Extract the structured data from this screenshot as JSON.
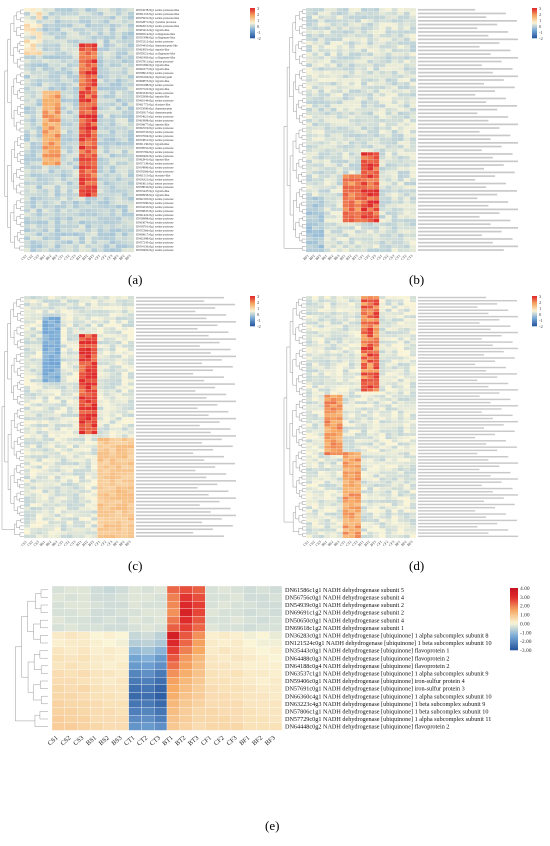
{
  "figure": {
    "panel_labels": [
      "(a)",
      "(b)",
      "(c)",
      "(d)",
      "(e)"
    ]
  },
  "chart_data": [
    {
      "type": "heatmap",
      "panel": "a",
      "rows": 62,
      "columns": [
        "CS1",
        "CS2",
        "CS3",
        "BS1",
        "BS2",
        "BS3",
        "CT1",
        "CT2",
        "CT3",
        "BT1",
        "BT2",
        "BT3",
        "CF1",
        "CF2",
        "CF3",
        "BF1",
        "BF2",
        "BF3"
      ],
      "colorbar_ticks": [
        "3",
        "2",
        "1",
        "0",
        "-1",
        "-2"
      ],
      "row_labels": [
        "DN54578c0g1 serine protease-like",
        "DN61253c0g1 serine protease-like",
        "DN55931c0g1 serine protease-like",
        "DN52871c0g1 cysteine protease",
        "DN62013c0g1 serine protease-like",
        "DN63412c0g1 trypsin-like",
        "DN60214c0g1 collagenase-like",
        "DN51998c0g1 collagenase-like",
        "DN55212c0g1 serine protease",
        "DN54410c0g1 chymotrypsin-like",
        "DN63001c0g1 trypsin-like",
        "DN59521c0g1 collagenase-like",
        "DN61983c0g1 collagenase-like",
        "DN57811c0g1 serine protease",
        "DN53360c0g1 trypsin-like",
        "DN62277c0g1 trypsin-like",
        "DN58913c0g1 serine protease",
        "DN56104c0g1 chymotrypsin",
        "DN60873c0g1 trypsin-like",
        "DN59188c0g1 serine protease",
        "DN57522c0g1 trypsin-like",
        "DN63345c0g1 serine protease",
        "DN52906c0g1 trypsin-like",
        "DN60144c0g1 serine protease",
        "DN61772c0g1 elastase-like",
        "DN55090c0g1 chymotrypsin",
        "DN58317c0g1 chymotrypsin",
        "DN54621c0g1 serine protease",
        "DN63908c0g1 serine protease",
        "DN56677c0g1 trypsin-like",
        "DN62519c0g1 serine protease",
        "DN59733c0g1 serine protease",
        "DN57004c0g1 serine protease",
        "DN53812c0g1 serine protease",
        "DN61136c0g1 trypsin-like",
        "DN58552c0g1 serine protease",
        "DN55784c0g1 serine protease",
        "DN60402c0g1 serine protease",
        "DN62841c0g1 trypsin-like",
        "DN57139c0g1 serine protease",
        "DN54990c0g1 serine protease",
        "DN59266c0g1 serine protease",
        "DN61515c0g1 elastase-like",
        "DN56321c0g1 serine protease",
        "DN63611c0g1 serine protease",
        "DN58034c0g1 serine protease",
        "DN55447c0g1 trypsin-like",
        "DN60958c0g1 trypsin-like",
        "DN62105c0g1 serine protease",
        "DN57690c0g1 serine protease",
        "DN54233c0g1 serine protease",
        "DN59847c0g1 serine protease",
        "DN61422c0g1 serine protease",
        "DN56968c0g1 serine protease",
        "DN63074c0g1 serine protease",
        "DN58701c0g1 serine protease",
        "DN55366c0g1 serine protease",
        "DN60617c0g1 serine protease",
        "DN62388c0g1 serine protease",
        "DN57245c0g1 serine protease",
        "DN54156c0g1 serine protease",
        "DN59402c0g1 serine protease"
      ]
    },
    {
      "type": "heatmap",
      "panel": "b",
      "rows": 66,
      "columns": [
        "BF1",
        "BF2",
        "BF3",
        "BS1",
        "BS2",
        "BS3",
        "BT1",
        "BT2",
        "BT3",
        "CF1",
        "CF2",
        "CF3",
        "CS1",
        "CS2",
        "CS3",
        "CT1",
        "CT2",
        "CT3"
      ],
      "colorbar_ticks": [
        "3",
        "2",
        "1",
        "0",
        "-1",
        "-2"
      ],
      "row_labels": []
    },
    {
      "type": "heatmap",
      "panel": "c",
      "rows": 70,
      "columns": [
        "CS1",
        "CS2",
        "CS3",
        "BS1",
        "BS2",
        "BS3",
        "CT1",
        "CT2",
        "CT3",
        "BT1",
        "BT2",
        "BT3",
        "CF1",
        "CF2",
        "CF3",
        "BF1",
        "BF2",
        "BF3"
      ],
      "colorbar_ticks": [
        "3",
        "2",
        "1",
        "0",
        "-1",
        "-2"
      ],
      "row_labels": []
    },
    {
      "type": "heatmap",
      "panel": "d",
      "rows": 76,
      "columns": [
        "CS1",
        "CS2",
        "CS3",
        "BS1",
        "BS2",
        "BS3",
        "CT1",
        "CT2",
        "CT3",
        "BT1",
        "BT2",
        "BT3",
        "CF1",
        "CF2",
        "CF3",
        "BF1",
        "BF2",
        "BF3"
      ],
      "colorbar_ticks": [
        "3",
        "2",
        "1",
        "0",
        "-1",
        "-2"
      ],
      "row_labels": []
    },
    {
      "type": "heatmap",
      "panel": "e",
      "columns": [
        "CS1",
        "CS2",
        "CS3",
        "BS1",
        "BS2",
        "BS3",
        "CT1",
        "CT2",
        "CT3",
        "BT1",
        "BT2",
        "BT3",
        "CF1",
        "CF2",
        "CF3",
        "BF1",
        "BF2",
        "BF3"
      ],
      "colorbar_ticks": [
        "4.00",
        "3.00",
        "2.00",
        "1.00",
        "0.00",
        "-1.00",
        "-2.00",
        "-3.00"
      ],
      "row_labels": [
        "DN61586c1g1 NADH dehydrogenase subunit 5",
        "DN56756c0g1 NADH dehydrogenase subunit 4",
        "DN54939c0g1 NADH dehydrogenase subunit 2",
        "DN69691c1g2 NADH dehydrogenase subunit 2",
        "DN50650c0g1 NADH dehydrogenase subunit 4",
        "DN69618c1g2 NADH dehydrogenase subunit 1",
        "DN36283c0g1 NADH dehydrogenase [ubiquinone] 1 alpha subcomplex subunit 8",
        "DN121524c0g1 NADH dehydrogenase [ubiquinone] 1 beta subcomplex subunit 10",
        "DN35443c0g1 NADH dehydrogenase [ubiquinone] flavoprotein 1",
        "DN64488c0g3 NADH dehydrogenase [ubiquinone] flavoprotein 2",
        "DN64188c0g4 NADH dehydrogenase [ubiquinone] flavoprotein 2",
        "DN63537c1g1 NADH dehydrogenase [ubiquinone] 1 alpha subcomplex subunit 9",
        "DN59406c0g1 NADH dehydrogenase [ubiquinone] iron-sulfur protein 4",
        "DN57691c0g1 NADH dehydrogenase [ubiquinone] iron-sulfur protein 3",
        "DN66360c4g1 NADH dehydrogenase [ubiquinone] 1 alpha subcomplex subunit 10",
        "DN63223c4g3 NADH dehydrogenase [ubiquinone] 1 beta subcomplex subunit 9",
        "DN57806c1g1 NADH dehydrogenase [ubiquinone] 1 beta subcomplex subunit 10",
        "DN57729c0g1 NADH dehydrogenase [ubiquinone] 1 alpha subcomplex subunit 11",
        "DN64448c0g2 NADH dehydrogenase [ubiquinone] flavoprotein 2"
      ],
      "values": [
        [
          -0.4,
          -0.3,
          -0.3,
          -0.5,
          -0.6,
          -0.5,
          -0.3,
          -0.4,
          -0.3,
          2.3,
          2.6,
          2.4,
          -0.4,
          -0.3,
          -0.4,
          -0.5,
          -0.4,
          -0.5
        ],
        [
          -0.3,
          -0.4,
          -0.3,
          -0.5,
          -0.5,
          -0.4,
          -0.3,
          -0.3,
          -0.4,
          2.0,
          2.9,
          2.6,
          -0.4,
          -0.4,
          -0.3,
          -0.5,
          -0.5,
          -0.4
        ],
        [
          -0.4,
          -0.3,
          -0.3,
          -0.4,
          -0.5,
          -0.5,
          -0.3,
          -0.4,
          -0.4,
          1.9,
          3.2,
          2.8,
          -0.4,
          -0.3,
          -0.4,
          -0.4,
          -0.5,
          -0.5
        ],
        [
          -0.4,
          -0.4,
          -0.3,
          -0.5,
          -0.5,
          -0.4,
          -0.4,
          -0.3,
          -0.3,
          1.8,
          3.4,
          2.7,
          -0.3,
          -0.4,
          -0.4,
          -0.5,
          -0.4,
          -0.5
        ],
        [
          -0.3,
          -0.4,
          -0.4,
          -0.5,
          -0.4,
          -0.5,
          -0.3,
          -0.4,
          -0.3,
          2.1,
          3.1,
          2.5,
          -0.4,
          -0.4,
          -0.3,
          -0.4,
          -0.5,
          -0.4
        ],
        [
          -0.4,
          -0.3,
          -0.4,
          -0.4,
          -0.5,
          -0.5,
          -0.4,
          -0.3,
          -0.4,
          2.4,
          2.8,
          2.3,
          -0.3,
          -0.4,
          -0.4,
          -0.5,
          -0.4,
          -0.4
        ],
        [
          0.2,
          0.3,
          0.2,
          0.0,
          0.1,
          0.0,
          -0.6,
          -0.5,
          -0.7,
          3.6,
          2.5,
          1.8,
          0.1,
          0.2,
          0.1,
          -0.1,
          0.0,
          -0.2
        ],
        [
          0.1,
          0.2,
          0.2,
          0.1,
          0.0,
          -0.1,
          -0.8,
          -0.7,
          -0.9,
          3.2,
          2.3,
          1.6,
          0.2,
          0.1,
          0.2,
          0.0,
          -0.1,
          -0.1
        ],
        [
          0.3,
          0.2,
          0.3,
          0.1,
          0.2,
          0.1,
          -1.2,
          -1.0,
          -1.3,
          2.8,
          2.0,
          1.5,
          0.2,
          0.3,
          0.2,
          0.1,
          0.0,
          0.1
        ],
        [
          0.4,
          0.3,
          0.4,
          0.2,
          0.2,
          0.1,
          -1.6,
          -1.4,
          -1.8,
          2.5,
          1.7,
          1.2,
          0.3,
          0.2,
          0.3,
          0.2,
          0.1,
          0.0
        ],
        [
          0.3,
          0.4,
          0.3,
          0.2,
          0.1,
          0.2,
          -1.8,
          -1.7,
          -2.0,
          2.2,
          1.6,
          1.1,
          0.3,
          0.3,
          0.2,
          0.1,
          0.1,
          0.1
        ],
        [
          0.5,
          0.4,
          0.5,
          0.3,
          0.3,
          0.2,
          -2.2,
          -2.0,
          -2.4,
          1.8,
          1.4,
          1.0,
          0.4,
          0.3,
          0.4,
          0.2,
          0.2,
          0.1
        ],
        [
          0.5,
          0.5,
          0.4,
          0.3,
          0.2,
          0.3,
          -2.4,
          -2.3,
          -2.6,
          1.6,
          1.2,
          0.9,
          0.4,
          0.4,
          0.3,
          0.2,
          0.1,
          0.2
        ],
        [
          0.6,
          0.5,
          0.6,
          0.4,
          0.3,
          0.3,
          -2.6,
          -2.5,
          -2.8,
          1.5,
          1.1,
          0.8,
          0.5,
          0.4,
          0.4,
          0.3,
          0.2,
          0.2
        ],
        [
          0.6,
          0.6,
          0.5,
          0.4,
          0.4,
          0.3,
          -2.7,
          -2.6,
          -2.9,
          1.4,
          1.0,
          0.8,
          0.5,
          0.5,
          0.4,
          0.3,
          0.3,
          0.2
        ],
        [
          0.7,
          0.6,
          0.6,
          0.5,
          0.4,
          0.4,
          -2.5,
          -2.4,
          -2.7,
          1.2,
          0.9,
          0.7,
          0.5,
          0.5,
          0.5,
          0.3,
          0.3,
          0.3
        ],
        [
          0.7,
          0.7,
          0.6,
          0.5,
          0.5,
          0.4,
          -2.3,
          -2.2,
          -2.5,
          1.1,
          0.8,
          0.6,
          0.6,
          0.5,
          0.5,
          0.4,
          0.3,
          0.3
        ],
        [
          0.8,
          0.7,
          0.7,
          0.5,
          0.5,
          0.5,
          -2.1,
          -2.0,
          -2.3,
          1.0,
          0.8,
          0.6,
          0.6,
          0.6,
          0.5,
          0.4,
          0.4,
          0.3
        ],
        [
          0.8,
          0.8,
          0.7,
          0.6,
          0.5,
          0.5,
          -1.9,
          -1.8,
          -2.0,
          0.9,
          0.7,
          0.5,
          0.6,
          0.6,
          0.6,
          0.4,
          0.4,
          0.4
        ]
      ]
    }
  ]
}
